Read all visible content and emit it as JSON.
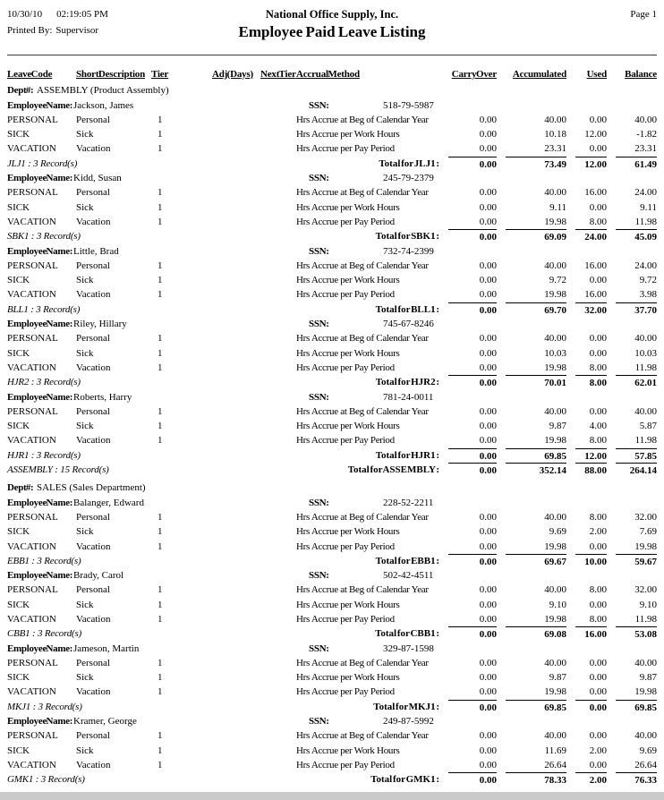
{
  "header": {
    "date": "10/30/10",
    "time": "02:19:05 PM",
    "company": "National Office Supply, Inc.",
    "page": "Page 1",
    "printed_by_label": "Printed By:",
    "printed_by": "Supervisor",
    "title": "Employee Paid Leave Listing"
  },
  "labels": {
    "dept": "Dept #:",
    "employee": "Employee Name:",
    "ssn": "SSN:"
  },
  "columns": [
    "Leave Code",
    "Short Description",
    "Tier",
    "Adj (Days)",
    "Next Tier",
    "Accrual Method",
    "Carry Over",
    "Accumulated",
    "Used",
    "Balance"
  ],
  "departments": [
    {
      "name": "ASSEMBLY",
      "description": "(Product Assembly)",
      "record_count": "ASSEMBLY : 15 Record(s)",
      "total_label": "Total for ASSEMBLY :",
      "totals": [
        "0.00",
        "352.14",
        "88.00",
        "264.14"
      ],
      "employees": [
        {
          "name": "Jackson, James",
          "ssn": "518-79-5987",
          "leaves": [
            {
              "code": "PERSONAL",
              "description": "Personal",
              "tier": "1",
              "method": "Hrs Accrue at Beg of Calendar Year",
              "carry_over": "0.00",
              "accumulated": "40.00",
              "used": "0.00",
              "balance": "40.00"
            },
            {
              "code": "SICK",
              "description": "Sick",
              "tier": "1",
              "method": "Hrs Accrue per Work Hours",
              "carry_over": "0.00",
              "accumulated": "10.18",
              "used": "12.00",
              "balance": "-1.82"
            },
            {
              "code": "VACATION",
              "description": "Vacation",
              "tier": "1",
              "method": "Hrs Accrue per Pay Period",
              "carry_over": "0.00",
              "accumulated": "23.31",
              "used": "0.00",
              "balance": "23.31"
            }
          ],
          "record_count": "JLJ1 : 3 Record(s)",
          "total_label": "Total for JLJ1 :",
          "totals": [
            "0.00",
            "73.49",
            "12.00",
            "61.49"
          ]
        },
        {
          "name": "Kidd, Susan",
          "ssn": "245-79-2379",
          "leaves": [
            {
              "code": "PERSONAL",
              "description": "Personal",
              "tier": "1",
              "method": "Hrs Accrue at Beg of Calendar Year",
              "carry_over": "0.00",
              "accumulated": "40.00",
              "used": "16.00",
              "balance": "24.00"
            },
            {
              "code": "SICK",
              "description": "Sick",
              "tier": "1",
              "method": "Hrs Accrue per Work Hours",
              "carry_over": "0.00",
              "accumulated": "9.11",
              "used": "0.00",
              "balance": "9.11"
            },
            {
              "code": "VACATION",
              "description": "Vacation",
              "tier": "1",
              "method": "Hrs Accrue per Pay Period",
              "carry_over": "0.00",
              "accumulated": "19.98",
              "used": "8.00",
              "balance": "11.98"
            }
          ],
          "record_count": "SBK1 : 3 Record(s)",
          "total_label": "Total for SBK1 :",
          "totals": [
            "0.00",
            "69.09",
            "24.00",
            "45.09"
          ]
        },
        {
          "name": "Little, Brad",
          "ssn": "732-74-2399",
          "leaves": [
            {
              "code": "PERSONAL",
              "description": "Personal",
              "tier": "1",
              "method": "Hrs Accrue at Beg of Calendar Year",
              "carry_over": "0.00",
              "accumulated": "40.00",
              "used": "16.00",
              "balance": "24.00"
            },
            {
              "code": "SICK",
              "description": "Sick",
              "tier": "1",
              "method": "Hrs Accrue per Work Hours",
              "carry_over": "0.00",
              "accumulated": "9.72",
              "used": "0.00",
              "balance": "9.72"
            },
            {
              "code": "VACATION",
              "description": "Vacation",
              "tier": "1",
              "method": "Hrs Accrue per Pay Period",
              "carry_over": "0.00",
              "accumulated": "19.98",
              "used": "16.00",
              "balance": "3.98"
            }
          ],
          "record_count": "BLL1 : 3 Record(s)",
          "total_label": "Total for BLL1 :",
          "totals": [
            "0.00",
            "69.70",
            "32.00",
            "37.70"
          ]
        },
        {
          "name": "Riley, Hillary",
          "ssn": "745-67-8246",
          "leaves": [
            {
              "code": "PERSONAL",
              "description": "Personal",
              "tier": "1",
              "method": "Hrs Accrue at Beg of Calendar Year",
              "carry_over": "0.00",
              "accumulated": "40.00",
              "used": "0.00",
              "balance": "40.00"
            },
            {
              "code": "SICK",
              "description": "Sick",
              "tier": "1",
              "method": "Hrs Accrue per Work Hours",
              "carry_over": "0.00",
              "accumulated": "10.03",
              "used": "0.00",
              "balance": "10.03"
            },
            {
              "code": "VACATION",
              "description": "Vacation",
              "tier": "1",
              "method": "Hrs Accrue per Pay Period",
              "carry_over": "0.00",
              "accumulated": "19.98",
              "used": "8.00",
              "balance": "11.98"
            }
          ],
          "record_count": "HJR2 : 3 Record(s)",
          "total_label": "Total for HJR2 :",
          "totals": [
            "0.00",
            "70.01",
            "8.00",
            "62.01"
          ]
        },
        {
          "name": "Roberts, Harry",
          "ssn": "781-24-0011",
          "leaves": [
            {
              "code": "PERSONAL",
              "description": "Personal",
              "tier": "1",
              "method": "Hrs Accrue at Beg of Calendar Year",
              "carry_over": "0.00",
              "accumulated": "40.00",
              "used": "0.00",
              "balance": "40.00"
            },
            {
              "code": "SICK",
              "description": "Sick",
              "tier": "1",
              "method": "Hrs Accrue per Work Hours",
              "carry_over": "0.00",
              "accumulated": "9.87",
              "used": "4.00",
              "balance": "5.87"
            },
            {
              "code": "VACATION",
              "description": "Vacation",
              "tier": "1",
              "method": "Hrs Accrue per Pay Period",
              "carry_over": "0.00",
              "accumulated": "19.98",
              "used": "8.00",
              "balance": "11.98"
            }
          ],
          "record_count": "HJR1 : 3 Record(s)",
          "total_label": "Total for HJR1 :",
          "totals": [
            "0.00",
            "69.85",
            "12.00",
            "57.85"
          ]
        }
      ]
    },
    {
      "name": "SALES",
      "description": "(Sales Department)",
      "employees": [
        {
          "name": "Balanger, Edward",
          "ssn": "228-52-2211",
          "leaves": [
            {
              "code": "PERSONAL",
              "description": "Personal",
              "tier": "1",
              "method": "Hrs Accrue at Beg of Calendar Year",
              "carry_over": "0.00",
              "accumulated": "40.00",
              "used": "8.00",
              "balance": "32.00"
            },
            {
              "code": "SICK",
              "description": "Sick",
              "tier": "1",
              "method": "Hrs Accrue per Work Hours",
              "carry_over": "0.00",
              "accumulated": "9.69",
              "used": "2.00",
              "balance": "7.69"
            },
            {
              "code": "VACATION",
              "description": "Vacation",
              "tier": "1",
              "method": "Hrs Accrue per Pay Period",
              "carry_over": "0.00",
              "accumulated": "19.98",
              "used": "0.00",
              "balance": "19.98"
            }
          ],
          "record_count": "EBB1 : 3 Record(s)",
          "total_label": "Total for EBB1 :",
          "totals": [
            "0.00",
            "69.67",
            "10.00",
            "59.67"
          ]
        },
        {
          "name": "Brady, Carol",
          "ssn": "502-42-4511",
          "leaves": [
            {
              "code": "PERSONAL",
              "description": "Personal",
              "tier": "1",
              "method": "Hrs Accrue at Beg of Calendar Year",
              "carry_over": "0.00",
              "accumulated": "40.00",
              "used": "8.00",
              "balance": "32.00"
            },
            {
              "code": "SICK",
              "description": "Sick",
              "tier": "1",
              "method": "Hrs Accrue per Work Hours",
              "carry_over": "0.00",
              "accumulated": "9.10",
              "used": "0.00",
              "balance": "9.10"
            },
            {
              "code": "VACATION",
              "description": "Vacation",
              "tier": "1",
              "method": "Hrs Accrue per Pay Period",
              "carry_over": "0.00",
              "accumulated": "19.98",
              "used": "8.00",
              "balance": "11.98"
            }
          ],
          "record_count": "CBB1 : 3 Record(s)",
          "total_label": "Total for CBB1 :",
          "totals": [
            "0.00",
            "69.08",
            "16.00",
            "53.08"
          ]
        },
        {
          "name": "Jameson, Martin",
          "ssn": "329-87-1598",
          "leaves": [
            {
              "code": "PERSONAL",
              "description": "Personal",
              "tier": "1",
              "method": "Hrs Accrue at Beg of Calendar Year",
              "carry_over": "0.00",
              "accumulated": "40.00",
              "used": "0.00",
              "balance": "40.00"
            },
            {
              "code": "SICK",
              "description": "Sick",
              "tier": "1",
              "method": "Hrs Accrue per Work Hours",
              "carry_over": "0.00",
              "accumulated": "9.87",
              "used": "0.00",
              "balance": "9.87"
            },
            {
              "code": "VACATION",
              "description": "Vacation",
              "tier": "1",
              "method": "Hrs Accrue per Pay Period",
              "carry_over": "0.00",
              "accumulated": "19.98",
              "used": "0.00",
              "balance": "19.98"
            }
          ],
          "record_count": "MKJ1 : 3 Record(s)",
          "total_label": "Total for MKJ1 :",
          "totals": [
            "0.00",
            "69.85",
            "0.00",
            "69.85"
          ]
        },
        {
          "name": "Kramer, George",
          "ssn": "249-87-5992",
          "leaves": [
            {
              "code": "PERSONAL",
              "description": "Personal",
              "tier": "1",
              "method": "Hrs Accrue at Beg of Calendar Year",
              "carry_over": "0.00",
              "accumulated": "40.00",
              "used": "0.00",
              "balance": "40.00"
            },
            {
              "code": "SICK",
              "description": "Sick",
              "tier": "1",
              "method": "Hrs Accrue per Work Hours",
              "carry_over": "0.00",
              "accumulated": "11.69",
              "used": "2.00",
              "balance": "9.69"
            },
            {
              "code": "VACATION",
              "description": "Vacation",
              "tier": "1",
              "method": "Hrs Accrue per Pay Period",
              "carry_over": "0.00",
              "accumulated": "26.64",
              "used": "0.00",
              "balance": "26.64"
            }
          ],
          "record_count": "GMK1 : 3 Record(s)",
          "total_label": "Total for GMK1 :",
          "totals": [
            "0.00",
            "78.33",
            "2.00",
            "76.33"
          ]
        }
      ]
    }
  ]
}
